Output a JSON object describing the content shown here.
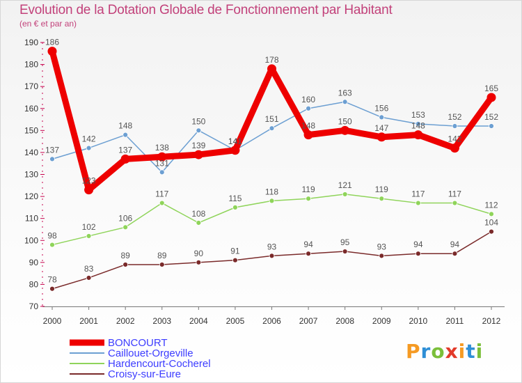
{
  "title": "Evolution de la Dotation Globale de Fonctionnement par Habitant",
  "subtitle": "(en € et par an)",
  "logo": {
    "text": "Proxiti",
    "letters": [
      "P",
      "r",
      "o",
      "x",
      "i",
      "t",
      "i"
    ],
    "colors": [
      "#f59a23",
      "#2f8fd6",
      "#7bbf3a",
      "#e23a2a",
      "#f59a23",
      "#2f8fd6",
      "#7bbf3a"
    ]
  },
  "chart_data": {
    "type": "line",
    "title": "Evolution de la Dotation Globale de Fonctionnement par Habitant",
    "subtitle": "(en € et par an)",
    "xlabel": "",
    "ylabel": "",
    "x": [
      "2000",
      "2001",
      "2002",
      "2003",
      "2004",
      "2005",
      "2006",
      "2007",
      "2008",
      "2009",
      "2010",
      "2011",
      "2012"
    ],
    "ylim": [
      70,
      190
    ],
    "yticks": [
      70,
      80,
      90,
      100,
      110,
      120,
      130,
      140,
      150,
      160,
      170,
      180,
      190
    ],
    "grid": false,
    "legend_position": "bottom-left",
    "series": [
      {
        "name": "BONCOURT",
        "color": "#ee0000",
        "width": "thick",
        "labelColor": "#3c3cff",
        "values": [
          186,
          123,
          137,
          138,
          139,
          141,
          178,
          148,
          150,
          147,
          148,
          142,
          165
        ],
        "labels": [
          "186",
          "123",
          "137",
          "138",
          "139",
          "141",
          "178",
          "148",
          "150",
          "147",
          "148",
          "142",
          "165"
        ]
      },
      {
        "name": "Caillouet-Orgeville",
        "color": "#6c9fd2",
        "width": "thin",
        "labelColor": "#3c3cff",
        "values": [
          137,
          142,
          148,
          131,
          150,
          141,
          151,
          160,
          163,
          156,
          153,
          152,
          152
        ],
        "labels": [
          "137",
          "142",
          "148",
          "131",
          "150",
          "141",
          "151",
          "160",
          "163",
          "156",
          "153",
          "152",
          "152"
        ]
      },
      {
        "name": "Hardencourt-Cocherel",
        "color": "#8fd45a",
        "width": "thin",
        "labelColor": "#3c3cff",
        "values": [
          98,
          102,
          106,
          117,
          108,
          115,
          118,
          119,
          121,
          119,
          117,
          117,
          112
        ],
        "labels": [
          "98",
          "102",
          "106",
          "117",
          "108",
          "115",
          "118",
          "119",
          "121",
          "119",
          "117",
          "117",
          "112"
        ]
      },
      {
        "name": "Croisy-sur-Eure",
        "color": "#7a2a2a",
        "width": "thin",
        "labelColor": "#3c3cff",
        "values": [
          78,
          83,
          89,
          89,
          90,
          91,
          93,
          94,
          95,
          93,
          94,
          94,
          104
        ],
        "labels": [
          "78",
          "83",
          "89",
          "89",
          "90",
          "91",
          "93",
          "94",
          "95",
          "93",
          "94",
          "94",
          "104"
        ]
      }
    ]
  }
}
